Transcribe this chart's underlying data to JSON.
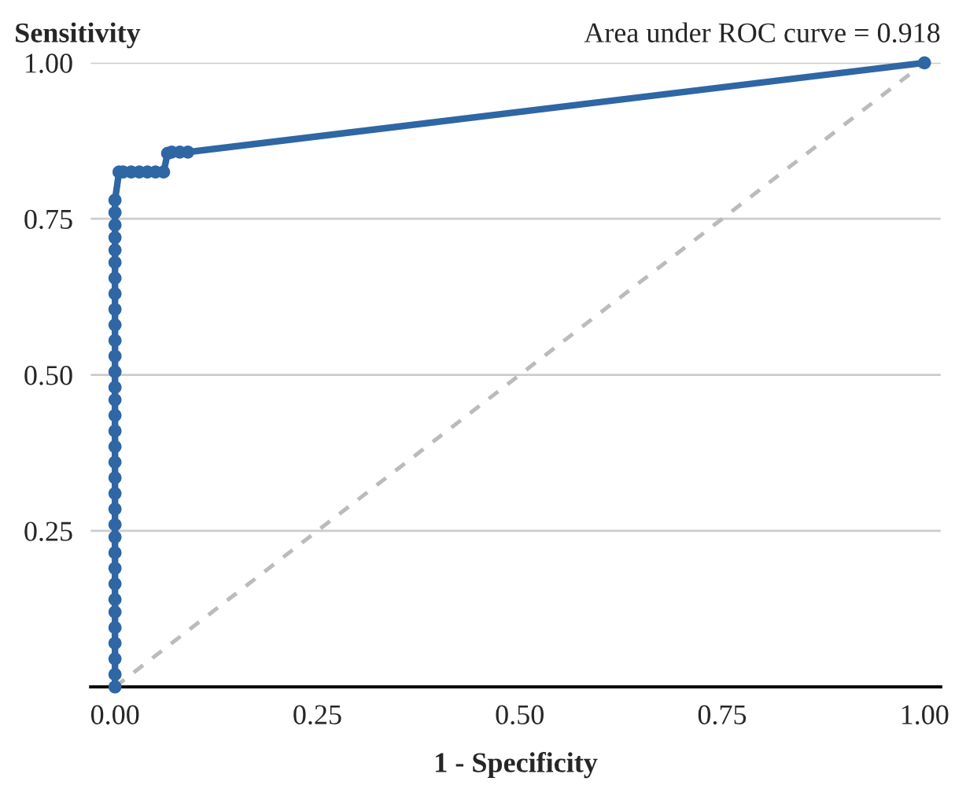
{
  "chart_data": {
    "type": "line",
    "title": "Sensitivity",
    "xlabel": "1 - Specificity",
    "annotations": [
      "Area under ROC curve = 0.918"
    ],
    "series": [
      {
        "color": "#2f66a4",
        "marker": "circle",
        "line_style": "solid",
        "x": [
          0,
          0,
          0,
          0,
          0,
          0,
          0,
          0,
          0,
          0,
          0,
          0,
          0,
          0,
          0,
          0,
          0,
          0,
          0,
          0,
          0,
          0,
          0,
          0,
          0,
          0,
          0,
          0,
          0,
          0,
          0,
          0,
          0,
          0,
          0.005,
          0.01,
          0.02,
          0.03,
          0.04,
          0.05,
          0.06,
          0.065,
          0.07,
          0.08,
          0.09,
          1.0
        ],
        "values": [
          0.0,
          0.02,
          0.045,
          0.07,
          0.095,
          0.12,
          0.14,
          0.165,
          0.19,
          0.215,
          0.24,
          0.26,
          0.285,
          0.31,
          0.335,
          0.36,
          0.385,
          0.41,
          0.435,
          0.46,
          0.48,
          0.505,
          0.53,
          0.555,
          0.58,
          0.605,
          0.63,
          0.655,
          0.68,
          0.7,
          0.72,
          0.74,
          0.76,
          0.78,
          0.825,
          0.825,
          0.825,
          0.825,
          0.825,
          0.825,
          0.825,
          0.855,
          0.857,
          0.857,
          0.857,
          1.0
        ]
      },
      {
        "color": "#bbbbbb",
        "marker": "none",
        "line_style": "dashed",
        "x": [
          0,
          1
        ],
        "values": [
          0,
          1
        ]
      }
    ],
    "xlim": [
      -0.03,
      1.02
    ],
    "ylim": [
      0,
      1
    ],
    "xticks": [
      {
        "value": 0,
        "label": "0.00"
      },
      {
        "value": 0.25,
        "label": "0.25"
      },
      {
        "value": 0.5,
        "label": "0.50"
      },
      {
        "value": 0.75,
        "label": "0.75"
      },
      {
        "value": 1,
        "label": "1.00"
      }
    ],
    "yticks": [
      {
        "value": 0.25,
        "label": "0.25"
      },
      {
        "value": 0.5,
        "label": "0.50"
      },
      {
        "value": 0.75,
        "label": "0.75"
      },
      {
        "value": 1,
        "label": "1.00"
      }
    ],
    "grid": "y",
    "legend": false
  }
}
